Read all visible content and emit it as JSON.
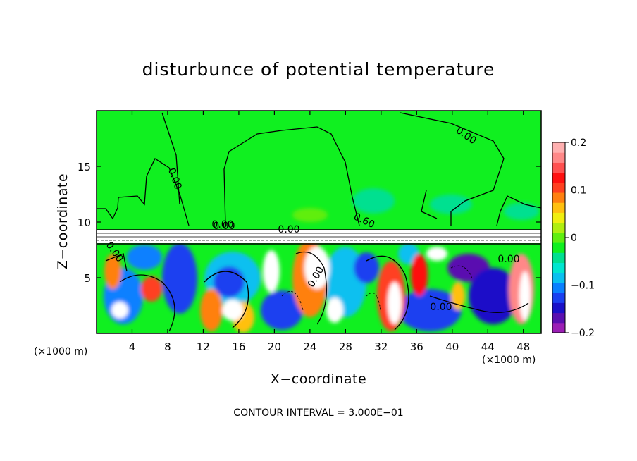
{
  "chart_data": {
    "type": "heatmap",
    "title": "disturbunce of potential temperature",
    "xlabel": "X−coordinate",
    "ylabel": "Z−coordinate",
    "x_unit_left": "(×1000 m)",
    "x_unit_right": "(×1000 m)",
    "x_ticks": [
      "4",
      "8",
      "12",
      "16",
      "20",
      "24",
      "28",
      "32",
      "36",
      "40",
      "44",
      "48"
    ],
    "x_tick_values": [
      4,
      8,
      12,
      16,
      20,
      24,
      28,
      32,
      36,
      40,
      44,
      48
    ],
    "xlim": [
      0,
      50
    ],
    "y_ticks": [
      "5",
      "10",
      "15"
    ],
    "y_tick_values": [
      5,
      10,
      15
    ],
    "ylim": [
      0,
      20
    ],
    "colorbar": {
      "vmin": -0.2,
      "vmax": 0.2,
      "tick_labels": [
        "0.2",
        "0.1",
        "0",
        "−0.1",
        "−0.2"
      ],
      "tick_values": [
        0.2,
        0.1,
        0,
        -0.1,
        -0.2
      ],
      "colors": [
        "#9b1fb5",
        "#5a0fb0",
        "#1a10c8",
        "#1a40f0",
        "#0a80ff",
        "#0ac0f0",
        "#00e6d0",
        "#00e090",
        "#10f020",
        "#60ee10",
        "#b0ee10",
        "#f0ee10",
        "#ffc010",
        "#ff8010",
        "#ff4020",
        "#ff1010",
        "#ff5050",
        "#ff8888",
        "#ffb0b0"
      ]
    },
    "contour_labels": [
      "0.00",
      "0.00",
      "0.00",
      "0.00",
      "0.60",
      "0.00",
      "0.00",
      "0.00",
      "0.00",
      "0.00"
    ],
    "footer": "CONTOUR INTERVAL = 3.000E−01"
  }
}
